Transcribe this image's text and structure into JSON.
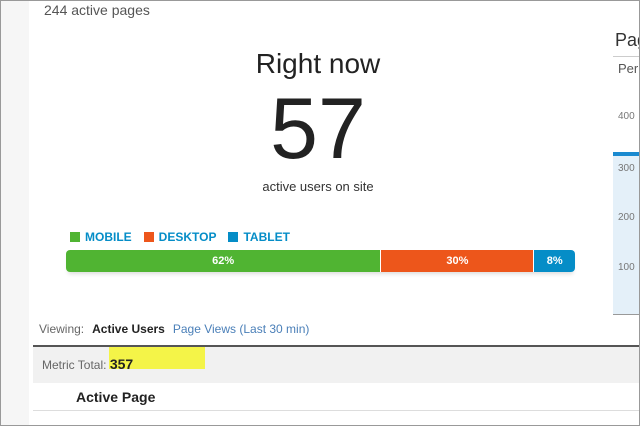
{
  "header": {
    "active_pages": "244 active pages"
  },
  "realtime": {
    "title": "Right now",
    "count": "57",
    "subtitle": "active users on site"
  },
  "devices": [
    {
      "label": "MOBILE",
      "percent": 62,
      "display": "62%",
      "color": "#50b432"
    },
    {
      "label": "DESKTOP",
      "percent": 30,
      "display": "30%",
      "color": "#ed561b"
    },
    {
      "label": "TABLET",
      "percent": 8,
      "display": "8%",
      "color": "#058dc7"
    }
  ],
  "side_chart": {
    "title": "Pag",
    "subtitle": "Per",
    "ticks": [
      "400",
      "300",
      "200",
      "100"
    ]
  },
  "viewing": {
    "label": "Viewing:",
    "active": "Active Users",
    "other": "Page Views (Last 30 min)"
  },
  "metric": {
    "label": "Metric Total:",
    "value": "357"
  },
  "table": {
    "header": "Active Page"
  }
}
